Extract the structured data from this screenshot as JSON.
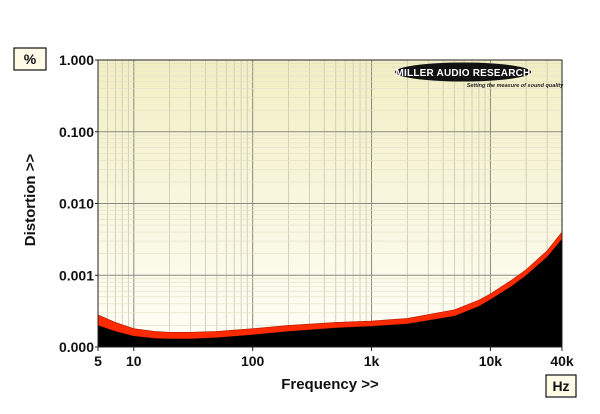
{
  "chart_data": {
    "type": "area",
    "xlabel": "Frequency >>",
    "ylabel": "Distortion >>",
    "y_unit": "%",
    "x_unit": "Hz",
    "x_scale": "log",
    "y_scale": "log",
    "xlim": [
      5,
      40000
    ],
    "ylim": [
      0.0001,
      1.0
    ],
    "x_ticks": [
      {
        "value": 5,
        "label": "5"
      },
      {
        "value": 10,
        "label": "10"
      },
      {
        "value": 100,
        "label": "100"
      },
      {
        "value": 1000,
        "label": "1k"
      },
      {
        "value": 10000,
        "label": "10k"
      },
      {
        "value": 40000,
        "label": "40k"
      }
    ],
    "y_ticks": [
      {
        "value": 1.0,
        "label": "1.000"
      },
      {
        "value": 0.1,
        "label": "0.100"
      },
      {
        "value": 0.01,
        "label": "0.010"
      },
      {
        "value": 0.001,
        "label": "0.001"
      },
      {
        "value": 0.0001,
        "label": "0.000"
      }
    ],
    "grid": true,
    "series": [
      {
        "role": "upper",
        "color": "#ff2a00",
        "x": [
          5,
          7,
          10,
          15,
          20,
          30,
          50,
          100,
          200,
          500,
          1000,
          2000,
          5000,
          8000,
          10000,
          15000,
          20000,
          30000,
          40000
        ],
        "y": [
          0.00028,
          0.00022,
          0.00018,
          0.000165,
          0.00016,
          0.00016,
          0.000165,
          0.00018,
          0.0002,
          0.00022,
          0.00023,
          0.00025,
          0.00033,
          0.00045,
          0.00055,
          0.00085,
          0.0012,
          0.0022,
          0.004
        ]
      },
      {
        "role": "lower",
        "color": "#000000",
        "x": [
          5,
          7,
          10,
          15,
          20,
          30,
          50,
          100,
          200,
          500,
          1000,
          2000,
          5000,
          8000,
          10000,
          15000,
          20000,
          30000,
          40000
        ],
        "y": [
          0.0002,
          0.000165,
          0.000142,
          0.000132,
          0.00013,
          0.00013,
          0.000135,
          0.000148,
          0.000165,
          0.000185,
          0.000195,
          0.00021,
          0.00027,
          0.00037,
          0.00046,
          0.0007,
          0.001,
          0.0018,
          0.0032
        ]
      }
    ]
  },
  "logo": {
    "name": "MILLER AUDIO RESEARCH",
    "tagline": "Setting the measure of sound quality"
  }
}
